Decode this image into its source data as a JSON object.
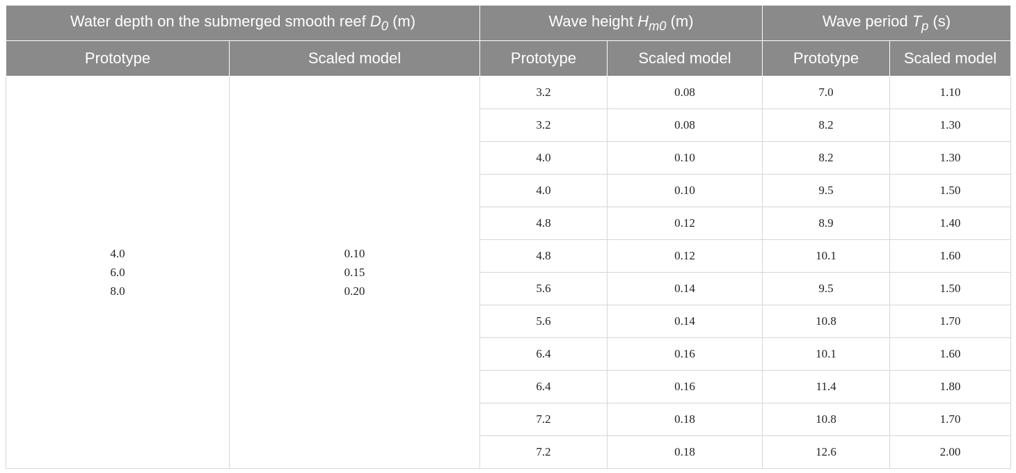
{
  "header": {
    "groups": [
      {
        "label": "Water depth on the submerged smooth reef",
        "symbol": "D",
        "subscript": "0",
        "unit": "(m)"
      },
      {
        "label": "Wave height",
        "symbol": "H",
        "subscript": "m0",
        "unit": "(m)"
      },
      {
        "label": "Wave period",
        "symbol": "T",
        "subscript": "p",
        "unit": "(s)"
      }
    ],
    "subheaders": [
      "Prototype",
      "Scaled model",
      "Prototype",
      "Scaled model",
      "Prototype",
      "Scaled model"
    ]
  },
  "depth": {
    "prototype": [
      "4.0",
      "6.0",
      "8.0"
    ],
    "scaled": [
      "0.10",
      "0.15",
      "0.20"
    ]
  },
  "rows": [
    [
      "3.2",
      "0.08",
      "7.0",
      "1.10"
    ],
    [
      "3.2",
      "0.08",
      "8.2",
      "1.30"
    ],
    [
      "4.0",
      "0.10",
      "8.2",
      "1.30"
    ],
    [
      "4.0",
      "0.10",
      "9.5",
      "1.50"
    ],
    [
      "4.8",
      "0.12",
      "8.9",
      "1.40"
    ],
    [
      "4.8",
      "0.12",
      "10.1",
      "1.60"
    ],
    [
      "5.6",
      "0.14",
      "9.5",
      "1.50"
    ],
    [
      "5.6",
      "0.14",
      "10.8",
      "1.70"
    ],
    [
      "6.4",
      "0.16",
      "10.1",
      "1.60"
    ],
    [
      "6.4",
      "0.16",
      "11.4",
      "1.80"
    ],
    [
      "7.2",
      "0.18",
      "10.8",
      "1.70"
    ],
    [
      "7.2",
      "0.18",
      "12.6",
      "2.00"
    ]
  ]
}
